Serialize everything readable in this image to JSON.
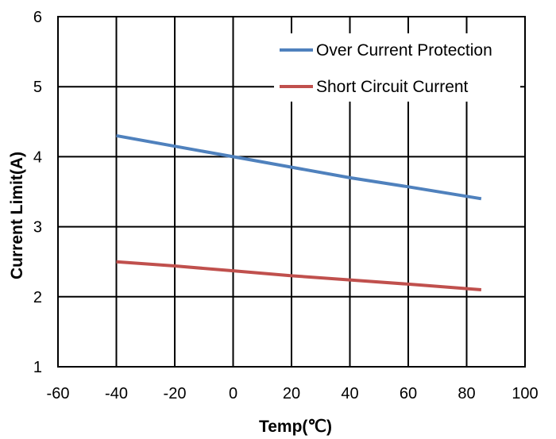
{
  "chart_data": {
    "type": "line",
    "xlabel": "Temp(℃)",
    "ylabel": "Current Limit(A)",
    "xlim": [
      -60,
      100
    ],
    "ylim": [
      1,
      6
    ],
    "x_ticks": [
      "-60",
      "-40",
      "-20",
      "0",
      "20",
      "40",
      "60",
      "80",
      "100"
    ],
    "y_ticks": [
      "1",
      "2",
      "3",
      "4",
      "5",
      "6"
    ],
    "grid": true,
    "legend_position": "top-right",
    "series": [
      {
        "name": "Over Current Protection",
        "color": "#4f81bd",
        "x": [
          -40,
          -20,
          0,
          20,
          40,
          60,
          85
        ],
        "y": [
          4.3,
          4.15,
          4.0,
          3.85,
          3.7,
          3.57,
          3.4
        ]
      },
      {
        "name": "Short Circuit Current",
        "color": "#c0504d",
        "x": [
          -40,
          -20,
          0,
          20,
          40,
          60,
          85
        ],
        "y": [
          2.5,
          2.44,
          2.37,
          2.3,
          2.24,
          2.18,
          2.1
        ]
      }
    ]
  }
}
